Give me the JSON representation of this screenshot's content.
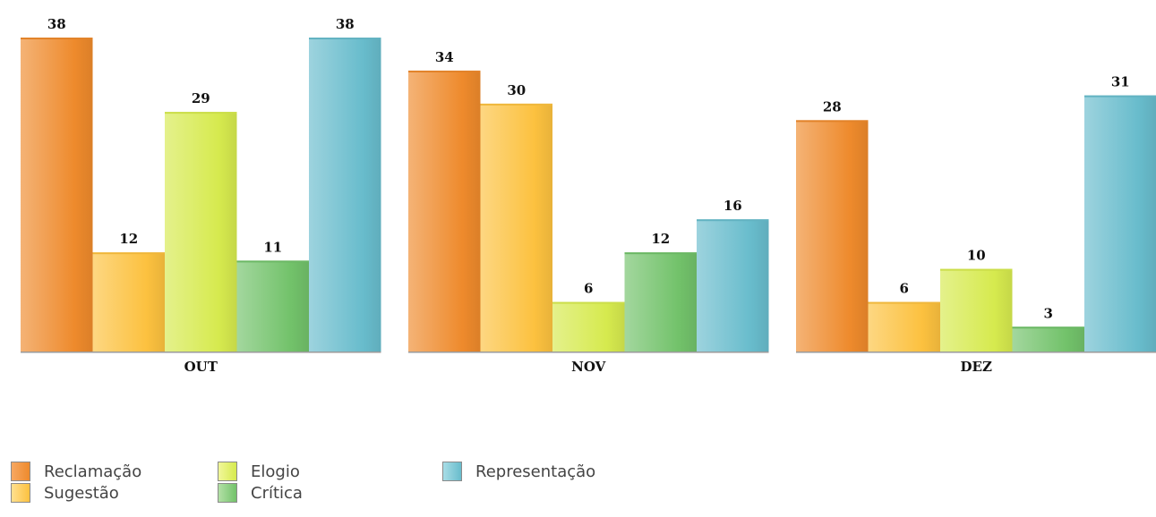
{
  "chart_data": {
    "type": "bar",
    "categories": [
      "OUT",
      "NOV",
      "DEZ"
    ],
    "series": [
      {
        "name": "Reclamação",
        "values": [
          38,
          34,
          28
        ],
        "color": "#ee8a2c"
      },
      {
        "name": "Sugestão",
        "values": [
          12,
          30,
          6
        ],
        "color": "#fcc13f"
      },
      {
        "name": "Elogio",
        "values": [
          29,
          6,
          10
        ],
        "color": "#d6ea4e"
      },
      {
        "name": "Crítica",
        "values": [
          11,
          12,
          3
        ],
        "color": "#72c26a"
      },
      {
        "name": "Representação",
        "values": [
          38,
          16,
          31
        ],
        "color": "#68bccc"
      }
    ],
    "ylim": [
      0,
      38
    ],
    "grid": false,
    "legend_position": "bottom-left"
  }
}
